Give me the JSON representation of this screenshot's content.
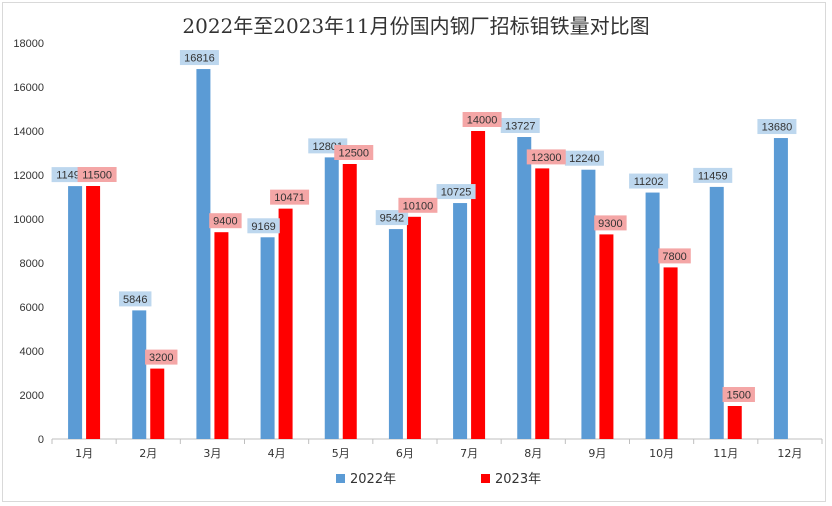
{
  "chart_data": {
    "type": "bar",
    "title": "2022年至2023年11月份国内钢厂招标钼铁量对比图",
    "categories": [
      "1月",
      "2月",
      "3月",
      "4月",
      "5月",
      "6月",
      "7月",
      "8月",
      "9月",
      "10月",
      "11月",
      "12月"
    ],
    "series": [
      {
        "name": "2022年",
        "color": "#5b9bd5",
        "label_bg": "#bdd7ee",
        "values": [
          11495,
          5846,
          16816,
          9169,
          12801,
          9542,
          10725,
          13727,
          12240,
          11202,
          11459,
          13680
        ],
        "labels": [
          "11495",
          "5846",
          "16816",
          "9169",
          "12801",
          "9542",
          "10725",
          "13727",
          "12240",
          "11202",
          "11459",
          "13680"
        ]
      },
      {
        "name": "2023年",
        "color": "#ff0000",
        "label_bg": "#f4a6a6",
        "values": [
          11500,
          3200,
          9400,
          10471,
          12500,
          10100,
          14000,
          12300,
          9300,
          7800,
          1500,
          null
        ],
        "labels": [
          "11500",
          "3200",
          "9400",
          "10471",
          "12500",
          "10100",
          "14000",
          "12300",
          "9300",
          "7800",
          "1500",
          ""
        ]
      }
    ],
    "ylim": [
      0,
      18000
    ],
    "yticks": [
      0,
      2000,
      4000,
      6000,
      8000,
      10000,
      12000,
      14000,
      16000,
      18000
    ],
    "grid": false,
    "legend": "bottom"
  }
}
